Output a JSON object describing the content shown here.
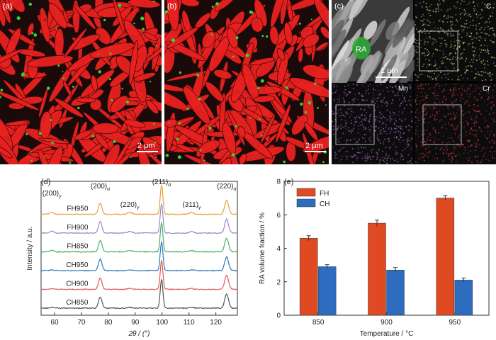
{
  "panels": {
    "a": {
      "label": "(a)",
      "scalebar": "2 μm",
      "phase_color": "#e82220",
      "ra_color": "#3ad23a"
    },
    "b": {
      "label": "(b)",
      "scalebar": "2 μm",
      "phase_color": "#e82220",
      "ra_color": "#3ad23a"
    },
    "c": {
      "label": "(c)",
      "ra_label": "RA",
      "scalebar": "1 μm",
      "maps": [
        {
          "element": "C",
          "color": "#c6c27a"
        },
        {
          "element": "Mn",
          "color": "#b86ad0"
        },
        {
          "element": "Cr",
          "color": "#d23a52"
        }
      ]
    },
    "d": {
      "label": "(d)"
    },
    "e": {
      "label": "(e)"
    }
  },
  "chart_data": [
    {
      "type": "line",
      "panel": "d",
      "xlabel": "2θ / (°)",
      "ylabel": "Intensity / a.u.",
      "xlim": [
        55,
        128
      ],
      "x_ticks": [
        60,
        70,
        80,
        90,
        100,
        110,
        120
      ],
      "peaks": [
        {
          "label": "(200)",
          "sub": "γ",
          "x": 59
        },
        {
          "label": "(200)",
          "sub": "α",
          "x": 77
        },
        {
          "label": "(220)",
          "sub": "γ",
          "x": 88
        },
        {
          "label": "(211)",
          "sub": "α",
          "x": 99.8
        },
        {
          "label": "(311)",
          "sub": "γ",
          "x": 111
        },
        {
          "label": "(220)",
          "sub": "α",
          "x": 124
        }
      ],
      "series": [
        {
          "name": "FH950",
          "color": "#e7a23a",
          "offset": 5,
          "ra_strength": 1.3
        },
        {
          "name": "FH900",
          "color": "#9b8ac8",
          "offset": 4,
          "ra_strength": 1.0
        },
        {
          "name": "FH850",
          "color": "#4bb06a",
          "offset": 3,
          "ra_strength": 0.9
        },
        {
          "name": "CH950",
          "color": "#2f7ab8",
          "offset": 2,
          "ra_strength": 0.4
        },
        {
          "name": "CH900",
          "color": "#e0585a",
          "offset": 1,
          "ra_strength": 0.5
        },
        {
          "name": "CH850",
          "color": "#555555",
          "offset": 0,
          "ra_strength": 0.5
        }
      ]
    },
    {
      "type": "bar",
      "panel": "e",
      "xlabel": "Temperature / °C",
      "ylabel": "RA volume fraction / %",
      "categories": [
        "850",
        "900",
        "950"
      ],
      "ylim": [
        0,
        8
      ],
      "y_ticks": [
        0,
        2,
        4,
        6,
        8
      ],
      "legend_position": "top-left",
      "series": [
        {
          "name": "FH",
          "color": "#e04a22",
          "values": [
            4.6,
            5.5,
            7.0
          ],
          "errors": [
            0.15,
            0.18,
            0.15
          ]
        },
        {
          "name": "CH",
          "color": "#2e6cc0",
          "values": [
            2.9,
            2.7,
            2.1
          ],
          "errors": [
            0.12,
            0.15,
            0.12
          ]
        }
      ]
    }
  ]
}
